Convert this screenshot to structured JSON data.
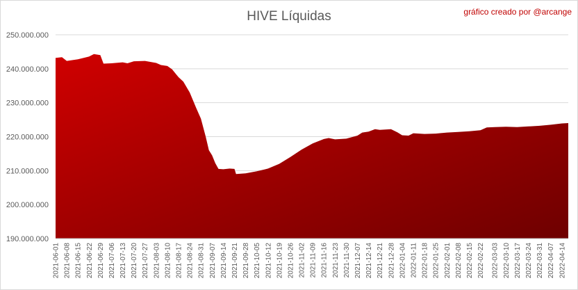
{
  "chart_data": {
    "type": "area",
    "title": "HIVE Líquidas",
    "annotation": "gráfico creado por @arcange",
    "ylim": [
      190000000,
      250000000
    ],
    "y_tick_labels": [
      "250.000.000",
      "240.000.000",
      "230.000.000",
      "220.000.000",
      "210.000.000",
      "200.000.000",
      "190.000.000"
    ],
    "x_tick_labels": [
      "2021-06-01",
      "2021-06-08",
      "2021-06-15",
      "2021-06-22",
      "2021-06-29",
      "2021-07-06",
      "2021-07-13",
      "2021-07-20",
      "2021-07-27",
      "2021-08-03",
      "2021-08-10",
      "2021-08-17",
      "2021-08-24",
      "2021-08-31",
      "2021-09-07",
      "2021-09-14",
      "2021-09-21",
      "2021-09-28",
      "2021-10-05",
      "2021-10-12",
      "2021-10-19",
      "2021-10-26",
      "2021-11-02",
      "2021-11-09",
      "2021-11-16",
      "2021-11-23",
      "2021-11-30",
      "2021-12-07",
      "2021-12-14",
      "2021-12-21",
      "2021-12-28",
      "2022-01-04",
      "2022-01-11",
      "2022-01-18",
      "2022-01-25",
      "2022-02-01",
      "2022-02-08",
      "2022-02-15",
      "2022-02-22",
      "2022-03-03",
      "2022-03-10",
      "2022-03-17",
      "2022-03-24",
      "2022-03-31",
      "2022-04-07",
      "2022-04-14"
    ],
    "series": [
      {
        "values": [
          {
            "x": "2021-06-01",
            "y": 243200000
          },
          {
            "x": "2021-06-05",
            "y": 243400000
          },
          {
            "x": "2021-06-08",
            "y": 242300000
          },
          {
            "x": "2021-06-15",
            "y": 242800000
          },
          {
            "x": "2021-06-22",
            "y": 243600000
          },
          {
            "x": "2021-06-25",
            "y": 244300000
          },
          {
            "x": "2021-06-29",
            "y": 244000000
          },
          {
            "x": "2021-07-01",
            "y": 241500000
          },
          {
            "x": "2021-07-06",
            "y": 241600000
          },
          {
            "x": "2021-07-13",
            "y": 241900000
          },
          {
            "x": "2021-07-16",
            "y": 241600000
          },
          {
            "x": "2021-07-20",
            "y": 242200000
          },
          {
            "x": "2021-07-27",
            "y": 242300000
          },
          {
            "x": "2021-08-03",
            "y": 241700000
          },
          {
            "x": "2021-08-06",
            "y": 241100000
          },
          {
            "x": "2021-08-10",
            "y": 240800000
          },
          {
            "x": "2021-08-13",
            "y": 239800000
          },
          {
            "x": "2021-08-17",
            "y": 237500000
          },
          {
            "x": "2021-08-20",
            "y": 236200000
          },
          {
            "x": "2021-08-24",
            "y": 233000000
          },
          {
            "x": "2021-08-28",
            "y": 228500000
          },
          {
            "x": "2021-08-31",
            "y": 225300000
          },
          {
            "x": "2021-09-03",
            "y": 220000000
          },
          {
            "x": "2021-09-05",
            "y": 216000000
          },
          {
            "x": "2021-09-07",
            "y": 214500000
          },
          {
            "x": "2021-09-09",
            "y": 212200000
          },
          {
            "x": "2021-09-11",
            "y": 210500000
          },
          {
            "x": "2021-09-14",
            "y": 210400000
          },
          {
            "x": "2021-09-18",
            "y": 210600000
          },
          {
            "x": "2021-09-21",
            "y": 210500000
          },
          {
            "x": "2021-09-22",
            "y": 209000000
          },
          {
            "x": "2021-09-28",
            "y": 209200000
          },
          {
            "x": "2021-10-05",
            "y": 209800000
          },
          {
            "x": "2021-10-12",
            "y": 210600000
          },
          {
            "x": "2021-10-19",
            "y": 212000000
          },
          {
            "x": "2021-10-26",
            "y": 214000000
          },
          {
            "x": "2021-11-02",
            "y": 216200000
          },
          {
            "x": "2021-11-09",
            "y": 218000000
          },
          {
            "x": "2021-11-16",
            "y": 219300000
          },
          {
            "x": "2021-11-19",
            "y": 219600000
          },
          {
            "x": "2021-11-23",
            "y": 219200000
          },
          {
            "x": "2021-11-30",
            "y": 219400000
          },
          {
            "x": "2021-12-07",
            "y": 220300000
          },
          {
            "x": "2021-12-10",
            "y": 221200000
          },
          {
            "x": "2021-12-14",
            "y": 221500000
          },
          {
            "x": "2021-12-18",
            "y": 222200000
          },
          {
            "x": "2021-12-21",
            "y": 222000000
          },
          {
            "x": "2021-12-28",
            "y": 222200000
          },
          {
            "x": "2022-01-01",
            "y": 221300000
          },
          {
            "x": "2022-01-04",
            "y": 220400000
          },
          {
            "x": "2022-01-08",
            "y": 220300000
          },
          {
            "x": "2022-01-11",
            "y": 221000000
          },
          {
            "x": "2022-01-18",
            "y": 220800000
          },
          {
            "x": "2022-01-25",
            "y": 220900000
          },
          {
            "x": "2022-02-01",
            "y": 221200000
          },
          {
            "x": "2022-02-08",
            "y": 221400000
          },
          {
            "x": "2022-02-15",
            "y": 221600000
          },
          {
            "x": "2022-02-22",
            "y": 221900000
          },
          {
            "x": "2022-02-26",
            "y": 222700000
          },
          {
            "x": "2022-03-03",
            "y": 222800000
          },
          {
            "x": "2022-03-10",
            "y": 222900000
          },
          {
            "x": "2022-03-17",
            "y": 222800000
          },
          {
            "x": "2022-03-24",
            "y": 223000000
          },
          {
            "x": "2022-03-31",
            "y": 223200000
          },
          {
            "x": "2022-04-07",
            "y": 223500000
          },
          {
            "x": "2022-04-14",
            "y": 223900000
          },
          {
            "x": "2022-04-18",
            "y": 224000000
          }
        ]
      }
    ],
    "grid": true,
    "legend": "none",
    "colors": {
      "fill_top": "#d00000",
      "fill_bottom": "#6e0000",
      "title": "#595959",
      "annotation": "#c00000",
      "gridline": "#d9d9d9",
      "axis_text": "#595959"
    }
  }
}
